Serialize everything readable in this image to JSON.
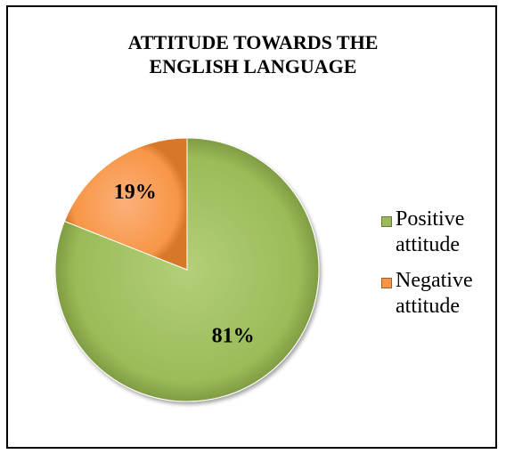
{
  "chart_data": {
    "type": "pie",
    "title_lines": [
      "ATTITUDE TOWARDS THE",
      "ENGLISH LANGUAGE"
    ],
    "slices": [
      {
        "label_lines": [
          "Positive",
          "attitude"
        ],
        "value": 81,
        "data_label": "81%",
        "color": "#9bbb59"
      },
      {
        "label_lines": [
          "Negative",
          "attitude"
        ],
        "value": 19,
        "data_label": "19%",
        "color": "#f79646"
      }
    ],
    "legend_position": "right",
    "start_angle_deg": 0,
    "direction": "clockwise"
  }
}
